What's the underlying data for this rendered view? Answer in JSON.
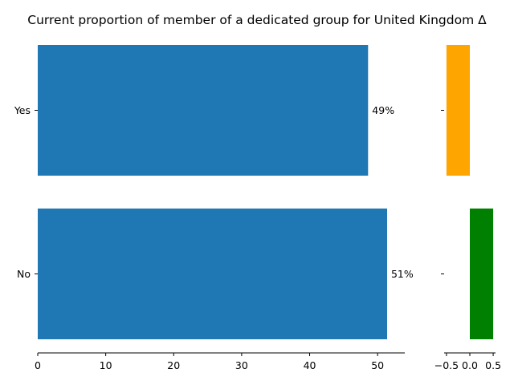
{
  "chart_data": [
    {
      "type": "bar",
      "orientation": "horizontal",
      "title": "Current proportion of member of a dedicated group for United Kingdom Δ",
      "categories": [
        "Yes",
        "No"
      ],
      "values": [
        48.6,
        51.4
      ],
      "value_labels": [
        "49%",
        "51%"
      ],
      "xlim": [
        0,
        54
      ],
      "xticks": [
        0,
        10,
        20,
        30,
        40,
        50
      ],
      "xlabel": "",
      "ylabel": "",
      "grid": false,
      "bar_color": "#1f77b4"
    },
    {
      "type": "bar",
      "orientation": "horizontal",
      "title": "",
      "categories": [
        "Yes",
        "No"
      ],
      "values": [
        -0.5,
        0.5
      ],
      "bar_colors": [
        "#ffa500",
        "#008000"
      ],
      "xlim": [
        -0.55,
        0.55
      ],
      "xticks": [
        -0.5,
        0.0,
        0.5
      ],
      "xtick_labels": [
        "−0.5",
        "0.0",
        "0.5"
      ],
      "xlabel": "",
      "ylabel": "",
      "grid": false
    }
  ]
}
